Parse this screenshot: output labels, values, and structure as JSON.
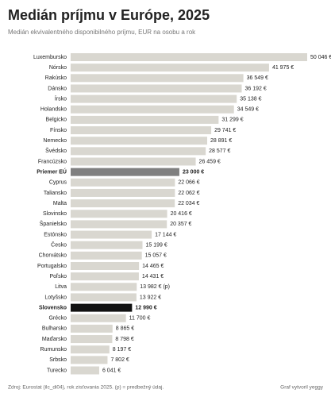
{
  "chart_data": {
    "type": "hbar",
    "title": "Medián príjmu v Európe, 2025",
    "subtitle": "Medián ekvivalentného disponibilného príjmu, EUR na osobu a rok",
    "categories": [
      "Luxembursko",
      "Nórsko",
      "Rakúsko",
      "Dánsko",
      "Írsko",
      "Holandsko",
      "Belgicko",
      "Fínsko",
      "Nemecko",
      "Švédsko",
      "Francúzsko",
      "Priemer EÚ",
      "Cyprus",
      "Taliansko",
      "Malta",
      "Slovinsko",
      "Španielsko",
      "Estónsko",
      "Česko",
      "Chorvátsko",
      "Portugalsko",
      "Poľsko",
      "Litva",
      "Lotyšsko",
      "Slovensko",
      "Grécko",
      "Bulharsko",
      "Maďarsko",
      "Rumunsko",
      "Srbsko",
      "Turecko"
    ],
    "values": [
      50046,
      41975,
      36549,
      36192,
      35138,
      34549,
      31299,
      29741,
      28891,
      28577,
      26459,
      23000,
      22066,
      22062,
      22034,
      20416,
      20357,
      17144,
      15199,
      15057,
      14465,
      14431,
      13982,
      13922,
      12990,
      11700,
      8865,
      8798,
      8197,
      7802,
      6041
    ],
    "value_labels": [
      "50 046 €",
      "41 975 €",
      "36 549 €",
      "36 192 €",
      "35 138 €",
      "34 549 €",
      "31 299 €",
      "29 741 €",
      "28 891 €",
      "28 577 €",
      "26 459 €",
      "23 000 €",
      "22 066 €",
      "22 062 €",
      "22 034 €",
      "20 416 €",
      "20 357 €",
      "17 144 €",
      "15 199 €",
      "15 057 €",
      "14 465 €",
      "14 431 €",
      "13 982 € (p)",
      "13 922 €",
      "12 990 €",
      "11 700 €",
      "8 865 €",
      "8 798 €",
      "8 197 €",
      "7 802 €",
      "6 041 €"
    ],
    "color": "#d9d7d0",
    "colors": [
      "#d9d7d0",
      "#d9d7d0",
      "#d9d7d0",
      "#d9d7d0",
      "#d9d7d0",
      "#d9d7d0",
      "#d9d7d0",
      "#d9d7d0",
      "#d9d7d0",
      "#d9d7d0",
      "#d9d7d0",
      "#808080",
      "#d9d7d0",
      "#d9d7d0",
      "#d9d7d0",
      "#d9d7d0",
      "#d9d7d0",
      "#d9d7d0",
      "#d9d7d0",
      "#d9d7d0",
      "#d9d7d0",
      "#d9d7d0",
      "#d9d7d0",
      "#d9d7d0",
      "#111111",
      "#d9d7d0",
      "#d9d7d0",
      "#d9d7d0",
      "#d9d7d0",
      "#d9d7d0",
      "#d9d7d0"
    ],
    "source": "Zdroj: Eurostat (ilc_di04), rok zisťovania 2025. (p) = predbežný údaj.",
    "credit": "Graf vytvoril yeggy"
  }
}
